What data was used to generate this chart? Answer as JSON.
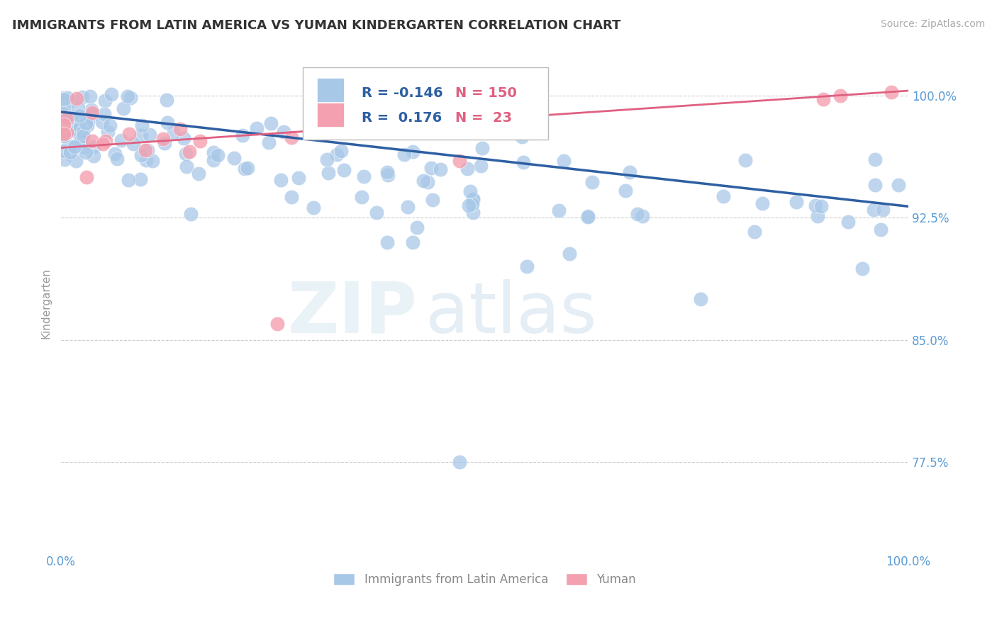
{
  "title": "IMMIGRANTS FROM LATIN AMERICA VS YUMAN KINDERGARTEN CORRELATION CHART",
  "source_text": "Source: ZipAtlas.com",
  "ylabel": "Kindergarten",
  "legend_label_1": "Immigrants from Latin America",
  "legend_label_2": "Yuman",
  "R1": -0.146,
  "N1": 150,
  "R2": 0.176,
  "N2": 23,
  "xlim": [
    0.0,
    1.0
  ],
  "ylim": [
    0.72,
    1.025
  ],
  "yticks": [
    0.775,
    0.85,
    0.925,
    1.0
  ],
  "ytick_labels": [
    "77.5%",
    "85.0%",
    "92.5%",
    "100.0%"
  ],
  "xticks": [
    0.0,
    0.25,
    0.5,
    0.75,
    1.0
  ],
  "xtick_labels": [
    "0.0%",
    "",
    "",
    "",
    "100.0%"
  ],
  "color_blue": "#a8c8e8",
  "color_pink": "#f4a0b0",
  "line_color_blue": "#2e5fa3",
  "line_color_pink": "#e06080",
  "title_color": "#333333",
  "tick_label_color": "#5b9bd5",
  "watermark_zip": "ZIP",
  "watermark_atlas": "atlas",
  "background_color": "#ffffff",
  "grid_color": "#cccccc",
  "trend_blue_y_start": 0.99,
  "trend_blue_y_end": 0.932,
  "trend_pink_y_start": 0.968,
  "trend_pink_y_end": 1.003
}
